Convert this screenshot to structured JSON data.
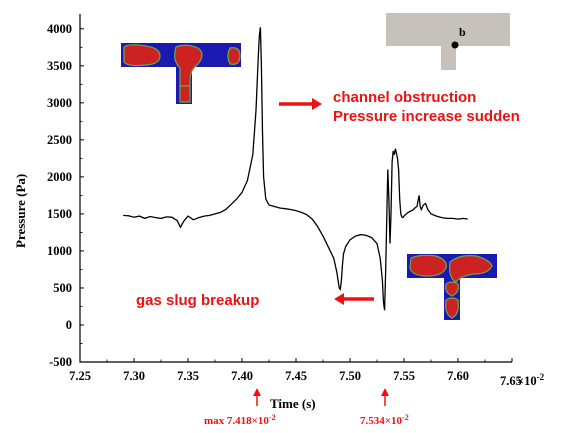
{
  "chart_data": {
    "type": "line",
    "title": "",
    "xlabel": "Time (s)",
    "ylabel": "Pressure (Pa)",
    "xlim": [
      7.25,
      7.65
    ],
    "ylim": [
      -500,
      4200
    ],
    "x_tick_labels": [
      "7.25",
      "7.30",
      "7.35",
      "7.40",
      "7.45",
      "7.50",
      "7.55",
      "7.60",
      "7.65"
    ],
    "x_multiplier": "×10",
    "x_multiplier_exp": "-2",
    "y_tick_labels": [
      "-500",
      "0",
      "500",
      "1000",
      "1500",
      "2000",
      "2500",
      "3000",
      "3500",
      "4000"
    ],
    "series": [
      {
        "x": [
          7.29,
          7.295,
          7.3,
          7.305,
          7.31,
          7.315,
          7.32,
          7.325,
          7.33,
          7.335,
          7.34,
          7.343,
          7.346,
          7.35,
          7.355,
          7.36,
          7.365,
          7.37,
          7.375,
          7.38,
          7.385,
          7.39,
          7.395,
          7.4,
          7.405,
          7.41,
          7.413,
          7.415,
          7.416,
          7.417,
          7.418,
          7.419,
          7.42,
          7.422,
          7.425,
          7.43,
          7.435,
          7.44,
          7.445,
          7.45,
          7.455,
          7.46,
          7.465,
          7.47,
          7.475,
          7.48,
          7.485,
          7.488,
          7.49,
          7.491,
          7.492,
          7.493,
          7.494,
          7.496,
          7.5,
          7.505,
          7.51,
          7.515,
          7.52,
          7.525,
          7.528,
          7.53,
          7.531,
          7.532,
          7.533,
          7.534,
          7.535,
          7.536,
          7.537,
          7.538,
          7.539,
          7.54,
          7.541,
          7.542,
          7.543,
          7.544,
          7.545,
          7.546,
          7.547,
          7.548,
          7.549,
          7.55,
          7.552,
          7.555,
          7.558,
          7.56,
          7.562,
          7.564,
          7.565,
          7.566,
          7.568,
          7.57,
          7.572,
          7.575,
          7.58,
          7.585,
          7.59,
          7.595,
          7.6,
          7.605,
          7.609
        ],
        "values": [
          1480,
          1475,
          1455,
          1470,
          1440,
          1465,
          1450,
          1440,
          1460,
          1455,
          1410,
          1320,
          1400,
          1470,
          1420,
          1450,
          1470,
          1480,
          1500,
          1520,
          1560,
          1630,
          1700,
          1790,
          1950,
          2300,
          2900,
          3600,
          3900,
          4020,
          3500,
          2600,
          2000,
          1700,
          1620,
          1600,
          1580,
          1570,
          1560,
          1545,
          1520,
          1490,
          1430,
          1330,
          1200,
          1050,
          900,
          700,
          500,
          480,
          600,
          800,
          960,
          1060,
          1150,
          1200,
          1220,
          1210,
          1180,
          1100,
          900,
          600,
          300,
          200,
          700,
          1400,
          2100,
          1700,
          1100,
          1500,
          2200,
          2350,
          2300,
          2380,
          2320,
          2250,
          2100,
          1700,
          1500,
          1460,
          1450,
          1470,
          1500,
          1530,
          1550,
          1580,
          1600,
          1750,
          1600,
          1560,
          1620,
          1640,
          1560,
          1500,
          1470,
          1450,
          1440,
          1440,
          1430,
          1440,
          1430
        ]
      }
    ],
    "annotations": {
      "obstruction_line1": "channel obstruction",
      "obstruction_line2": "Pressure increase sudden",
      "breakup": "gas slug breakup",
      "max_prefix": "max 7.418×10",
      "max_exp": "-2",
      "min_label": "7.534×10",
      "min_exp": "-2",
      "inset_b": "b"
    },
    "colors": {
      "line": "#000000",
      "annotation": "#ee1111",
      "droplet": "#cc2222",
      "channel": "#1a1ab0",
      "rim": "#6aa84f",
      "geometry": "#c7c2b9"
    }
  }
}
